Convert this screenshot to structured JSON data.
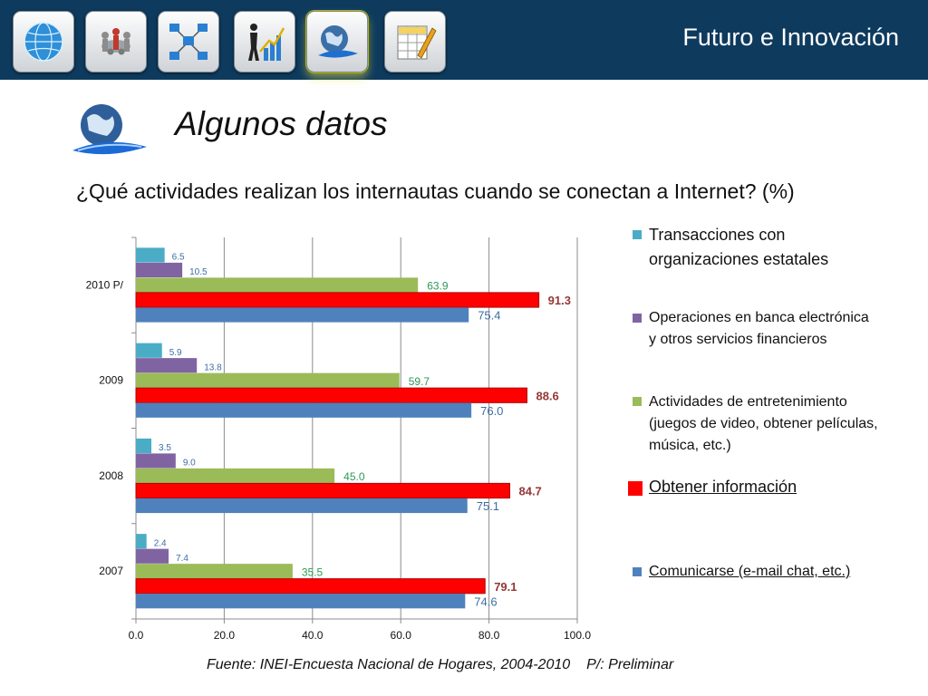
{
  "header": {
    "title": "Futuro e Innovación",
    "nav_icons": [
      "globe-network-icon",
      "people-meeting-icon",
      "computer-network-icon",
      "growth-chart-icon",
      "globe-swoosh-icon",
      "spreadsheet-edit-icon"
    ]
  },
  "slide": {
    "title": "Algunos datos",
    "question": "¿Qué actividades realizan los internautas cuando se conectan a Internet? (%)",
    "source": "Fuente: INEI-Encuesta Nacional de Hogares, 2004-2010",
    "note": "P/: Preliminar"
  },
  "chart_data": {
    "type": "bar",
    "orientation": "horizontal",
    "categories": [
      "2010 P/",
      "2009",
      "2008",
      "2007"
    ],
    "xlim": [
      0,
      100
    ],
    "xticks": [
      "0.0",
      "20.0",
      "40.0",
      "60.0",
      "80.0",
      "100.0"
    ],
    "grid": true,
    "legend_position": "right",
    "series": [
      {
        "name": "Transacciones con organizaciones estatales",
        "color": "#4bacc6",
        "label_color": "#3a6ea5",
        "values": [
          6.5,
          5.9,
          3.5,
          2.4
        ],
        "labels": [
          "6.5",
          "5.9",
          "3.5",
          "2.4"
        ]
      },
      {
        "name": "Operaciones en banca electrónica y otros servicios financieros",
        "color": "#8064a2",
        "label_color": "#3a6ea5",
        "values": [
          10.5,
          13.8,
          9.0,
          7.4
        ],
        "labels": [
          "10.5",
          "13.8",
          "9.0",
          "7.4"
        ]
      },
      {
        "name": "Actividades de entretenimiento (juegos de video, obtener películas, música, etc.)",
        "color": "#9bbb59",
        "label_color": "#2e9a56",
        "values": [
          63.9,
          59.7,
          45.0,
          35.5
        ],
        "labels": [
          "63.9",
          "59.7",
          "45.0",
          "35.5"
        ]
      },
      {
        "name": "Obtener información",
        "color": "#ff0000",
        "label_color": "#953735",
        "values": [
          91.3,
          88.6,
          84.7,
          79.1
        ],
        "labels": [
          "91.3",
          "88.6",
          "84.7",
          "79.1"
        ]
      },
      {
        "name": "Comunicarse (e-mail chat, etc.)",
        "color": "#4f81bd",
        "label_color": "#3a6ea5",
        "values": [
          75.4,
          76.0,
          75.1,
          74.6
        ],
        "labels": [
          "75.4",
          "76.0",
          "75.1",
          "74.6"
        ]
      }
    ]
  }
}
